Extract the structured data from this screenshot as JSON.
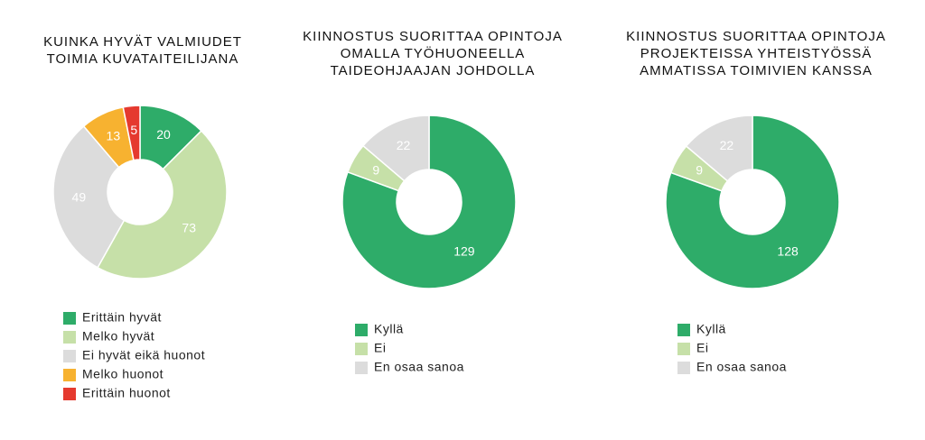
{
  "chart_data": [
    {
      "type": "pie",
      "title": [
        "KUINKA HYVÄT VALMIUDET",
        "TOIMIA KUVATAITEILIJANA"
      ],
      "categories": [
        "Erittäin hyvät",
        "Melko hyvät",
        "Ei hyvät eikä huonot",
        "Melko huonot",
        "Erittäin huonot"
      ],
      "values": [
        20,
        73,
        49,
        13,
        5
      ],
      "colors": [
        "#2eac69",
        "#c6e0a8",
        "#dcdcdc",
        "#f7b230",
        "#e53a2f"
      ]
    },
    {
      "type": "pie",
      "title": [
        "KIINNOSTUS SUORITTAA OPINTOJA",
        "OMALLA TYÖHUONEELLA",
        "TAIDEOHJAAJAN JOHDOLLA"
      ],
      "categories": [
        "Kyllä",
        "Ei",
        "En osaa sanoa"
      ],
      "values": [
        129,
        9,
        22
      ],
      "colors": [
        "#2eac69",
        "#c6e0a8",
        "#dcdcdc"
      ]
    },
    {
      "type": "pie",
      "title": [
        "KIINNOSTUS SUORITTAA OPINTOJA",
        "PROJEKTEISSA YHTEISTYÖSSÄ",
        "AMMATISSA TOIMIVIEN KANSSA"
      ],
      "categories": [
        "Kyllä",
        "Ei",
        "En osaa sanoa"
      ],
      "values": [
        128,
        9,
        22
      ],
      "colors": [
        "#2eac69",
        "#c6e0a8",
        "#dcdcdc"
      ]
    }
  ]
}
